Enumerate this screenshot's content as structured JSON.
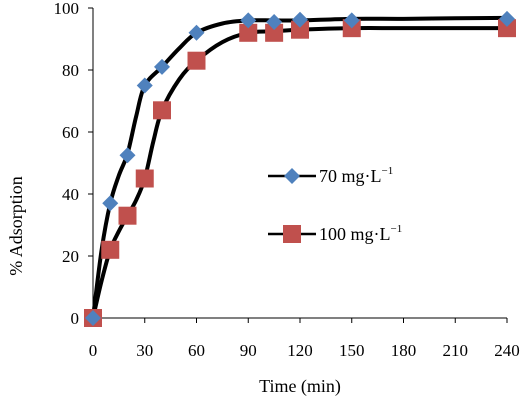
{
  "chart_data": {
    "type": "scatter",
    "xlabel": "Time (min)",
    "ylabel": "% Adsorption",
    "xlim": [
      0,
      240
    ],
    "ylim": [
      0,
      100
    ],
    "x_ticks": [
      "0",
      "30",
      "60",
      "90",
      "120",
      "150",
      "180",
      "210",
      "240"
    ],
    "y_ticks": [
      "0",
      "20",
      "40",
      "60",
      "80",
      "100"
    ],
    "grid": false,
    "legend_position": "right-middle",
    "series": [
      {
        "name": "70 mg·L",
        "name_superscript": "−1",
        "marker": "diamond",
        "color": "#4F81BD",
        "x": [
          0,
          10,
          20,
          30,
          40,
          60,
          90,
          105,
          120,
          150,
          240
        ],
        "y": [
          0,
          37,
          52.5,
          75,
          81,
          92,
          96,
          95.5,
          96.2,
          96,
          96.5
        ],
        "curve": [
          [
            0,
            0
          ],
          [
            5,
            22
          ],
          [
            10,
            37
          ],
          [
            15,
            46
          ],
          [
            20,
            53
          ],
          [
            25,
            65
          ],
          [
            30,
            75
          ],
          [
            40,
            81
          ],
          [
            50,
            87
          ],
          [
            60,
            92
          ],
          [
            75,
            95
          ],
          [
            90,
            96
          ],
          [
            105,
            96
          ],
          [
            120,
            96
          ],
          [
            150,
            96.5
          ],
          [
            180,
            96.5
          ],
          [
            210,
            96.7
          ],
          [
            240,
            96.8
          ]
        ]
      },
      {
        "name": "100 mg·L",
        "name_superscript": "−1",
        "marker": "square",
        "color": "#C0504D",
        "x": [
          0,
          10,
          20,
          30,
          40,
          60,
          90,
          105,
          120,
          150,
          240
        ],
        "y": [
          0,
          22,
          33,
          45,
          67,
          83,
          92,
          92,
          93,
          93.5,
          93.5
        ],
        "curve": [
          [
            0,
            0
          ],
          [
            5,
            12
          ],
          [
            10,
            22
          ],
          [
            15,
            28
          ],
          [
            20,
            33
          ],
          [
            25,
            38
          ],
          [
            30,
            45
          ],
          [
            35,
            57
          ],
          [
            40,
            67
          ],
          [
            50,
            77
          ],
          [
            60,
            83
          ],
          [
            75,
            89
          ],
          [
            90,
            92
          ],
          [
            105,
            92.5
          ],
          [
            120,
            93
          ],
          [
            150,
            93.5
          ],
          [
            180,
            93.5
          ],
          [
            210,
            93.5
          ],
          [
            240,
            93.5
          ]
        ]
      }
    ]
  }
}
